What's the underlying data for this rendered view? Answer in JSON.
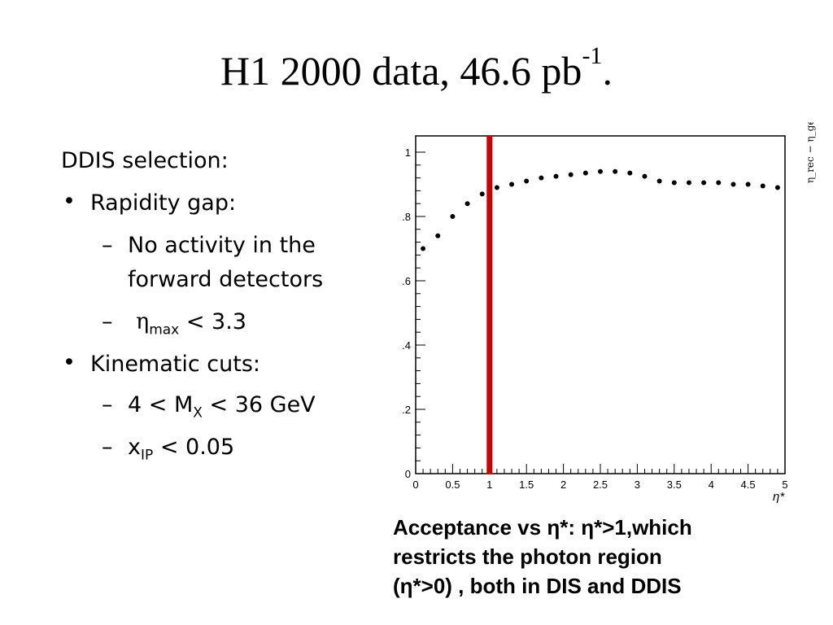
{
  "slide": {
    "title_main": "H1 2000 data, 46.6 pb",
    "title_sup": "-1",
    "title_end": "."
  },
  "bullets": {
    "heading": "DDIS selection:",
    "item1": "Rapidity gap:",
    "sub1": "No activity in the",
    "sub1b": "forward detectors",
    "sub2_eta": "η",
    "sub2_sub": "max",
    "sub2_rest": " < 3.3",
    "item2": "Kinematic cuts:",
    "sub3_pre": "4 < M",
    "sub3_sub": "X",
    "sub3_post": " < 36 GeV",
    "sub4_pre": "x",
    "sub4_sub": "IP",
    "sub4_post": " < 0.05",
    "bullet_mark": "•",
    "dash_mark": "–"
  },
  "caption": {
    "line1": "Acceptance vs η*: η*>1,which",
    "line2": "restricts the photon region",
    "line3": "(η*>0) , both in DIS and DDIS"
  },
  "chart_data": {
    "type": "scatter",
    "x": [
      0.1,
      0.3,
      0.5,
      0.7,
      0.9,
      1.1,
      1.3,
      1.5,
      1.7,
      1.9,
      2.1,
      2.3,
      2.5,
      2.7,
      2.9,
      3.1,
      3.3,
      3.5,
      3.7,
      3.9,
      4.1,
      4.3,
      4.5,
      4.7,
      4.9
    ],
    "y": [
      0.7,
      0.74,
      0.8,
      0.84,
      0.87,
      0.89,
      0.9,
      0.91,
      0.92,
      0.925,
      0.93,
      0.935,
      0.94,
      0.94,
      0.935,
      0.925,
      0.91,
      0.905,
      0.905,
      0.905,
      0.905,
      0.9,
      0.9,
      0.895,
      0.89
    ],
    "xlim": [
      0,
      5
    ],
    "ylim": [
      0,
      1
    ],
    "x_ticks": [
      "0",
      "0.5",
      "1",
      "1.5",
      "2",
      "2.5",
      "3",
      "3.5",
      "4",
      "4.5",
      "5"
    ],
    "y_ticks": [
      "0",
      ".2",
      ".4",
      ".6",
      ".8",
      "1"
    ],
    "xlabel": "η*",
    "cut_line_x": 1,
    "cut_line_color": "#cc0000",
    "marker_color": "#000000",
    "grid": false,
    "side_label": "η_rec − η_gen"
  }
}
